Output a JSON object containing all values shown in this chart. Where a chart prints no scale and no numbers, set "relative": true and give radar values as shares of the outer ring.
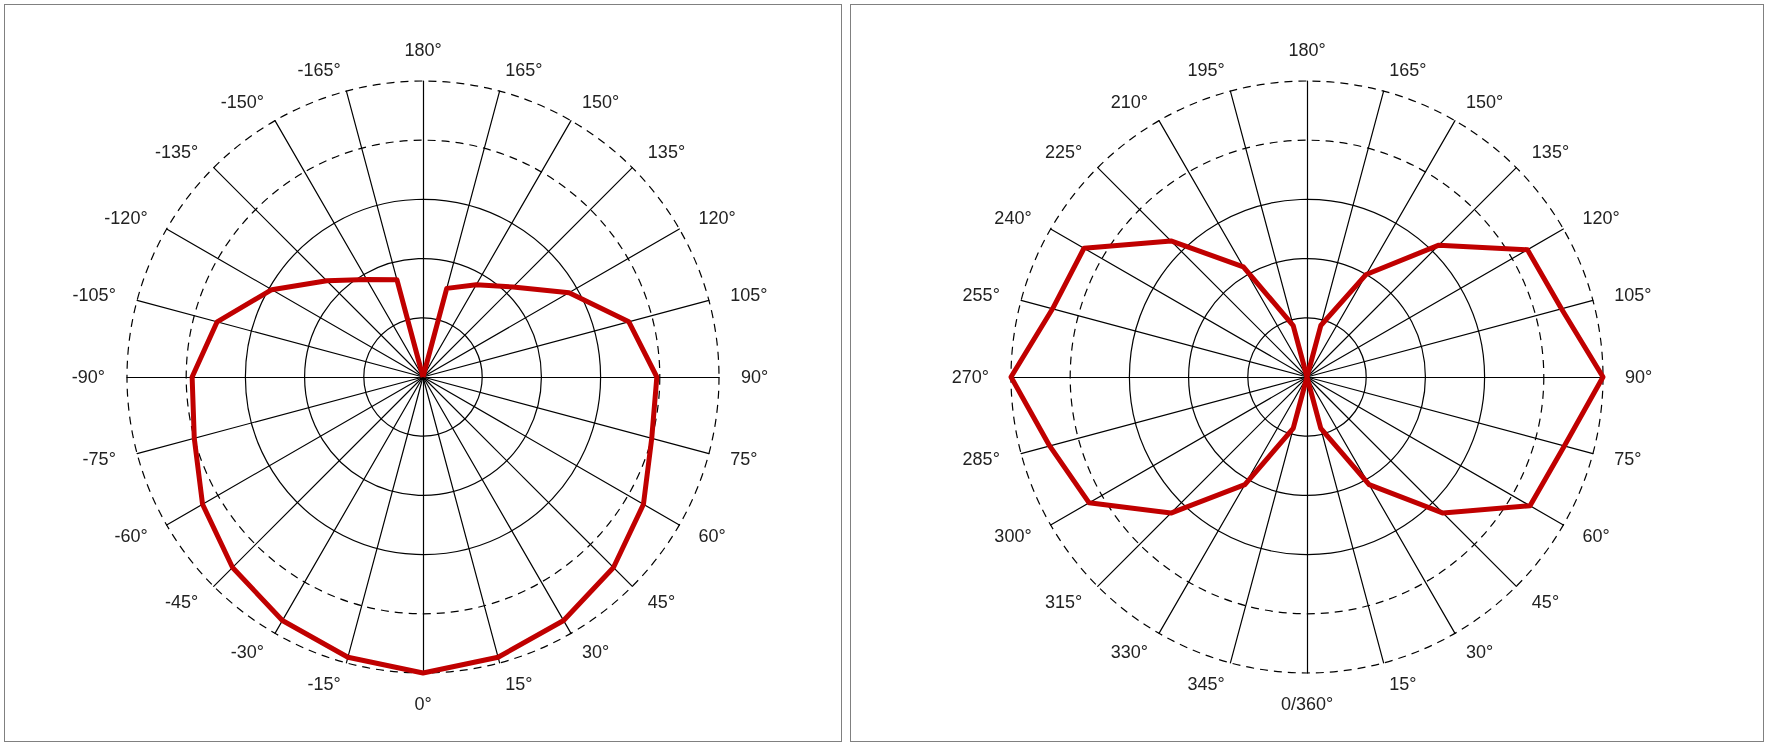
{
  "chart_data": [
    {
      "type": "radar",
      "relative": true,
      "line_style": "solid",
      "marker": "none",
      "categories": [
        "180°",
        "165°",
        "150°",
        "135°",
        "120°",
        "105°",
        "90°",
        "75°",
        "60°",
        "45°",
        "30°",
        "15°",
        "0°",
        "-15°",
        "-30°",
        "-45°",
        "-60°",
        "-75°",
        "-90°",
        "-105°",
        "-120°",
        "-135°",
        "-150°",
        "-165°"
      ],
      "series": [
        {
          "color": "#c00000",
          "values": [
            0,
            0.31,
            0.36,
            0.43,
            0.57,
            0.72,
            0.79,
            0.8,
            0.86,
            0.91,
            0.95,
            0.98,
            1,
            0.98,
            0.95,
            0.91,
            0.86,
            0.8,
            0.78,
            0.72,
            0.59,
            0.46,
            0.38,
            0.34
          ]
        }
      ]
    },
    {
      "type": "radar",
      "relative": true,
      "line_style": "solid",
      "marker": "none",
      "categories": [
        "180°",
        "165°",
        "150°",
        "135°",
        "120°",
        "105°",
        "90°",
        "75°",
        "60°",
        "45°",
        "30°",
        "15°",
        "0/360°",
        "345°",
        "330°",
        "315°",
        "300°",
        "285°",
        "270°",
        "255°",
        "240°",
        "225°",
        "210°",
        "195°"
      ],
      "series": [
        {
          "color": "#c00000",
          "values": [
            0,
            0.18,
            0.4,
            0.63,
            0.86,
            0.89,
            1,
            0.9,
            0.87,
            0.65,
            0.42,
            0.18,
            0,
            0.18,
            0.42,
            0.65,
            0.85,
            0.9,
            1,
            0.89,
            0.87,
            0.65,
            0.43,
            0.18
          ]
        }
      ]
    }
  ]
}
